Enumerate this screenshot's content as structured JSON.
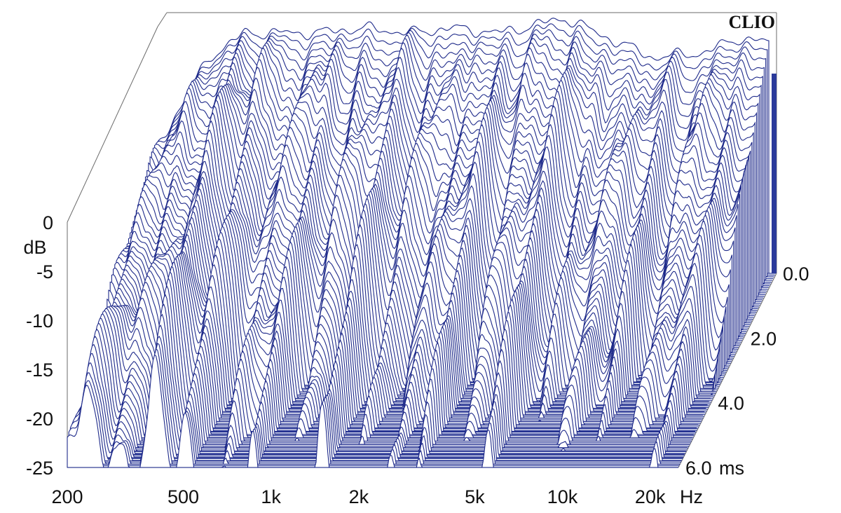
{
  "chart_data": {
    "type": "waterfall",
    "brand": "CLIO",
    "colors": {
      "lines": "#1e2a8a",
      "frame": "#6b6b6b",
      "floor": "#2b3a9a"
    },
    "frequency_axis": {
      "unit": "Hz",
      "scale": "log",
      "range": [
        200,
        25000
      ],
      "ticks": [
        {
          "value": 200,
          "label": "200"
        },
        {
          "value": 500,
          "label": "500"
        },
        {
          "value": 1000,
          "label": "1k"
        },
        {
          "value": 2000,
          "label": "2k"
        },
        {
          "value": 5000,
          "label": "5k"
        },
        {
          "value": 10000,
          "label": "10k"
        },
        {
          "value": 20000,
          "label": "20k"
        }
      ]
    },
    "level_axis": {
      "unit": "dB",
      "range": [
        -25,
        0
      ],
      "ticks": [
        {
          "value": 0,
          "label": "0"
        },
        {
          "value": -5,
          "label": "-5"
        },
        {
          "value": -10,
          "label": "-10"
        },
        {
          "value": -15,
          "label": "-15"
        },
        {
          "value": -20,
          "label": "-20"
        },
        {
          "value": -25,
          "label": "-25"
        }
      ]
    },
    "time_axis": {
      "unit": "ms",
      "range": [
        0,
        6
      ],
      "ticks": [
        {
          "value": 0,
          "label": "0.0"
        },
        {
          "value": 2,
          "label": "2.0"
        },
        {
          "value": 4,
          "label": "4.0"
        },
        {
          "value": 6,
          "label": "6.0"
        }
      ]
    },
    "slices": 60,
    "initial_response_db": [
      {
        "f": 200,
        "db": -12
      },
      {
        "f": 300,
        "db": -3
      },
      {
        "f": 400,
        "db": -0.5
      },
      {
        "f": 500,
        "db": -0.5
      },
      {
        "f": 700,
        "db": -0.5
      },
      {
        "f": 1000,
        "db": 0
      },
      {
        "f": 1500,
        "db": -0.5
      },
      {
        "f": 2000,
        "db": 0
      },
      {
        "f": 3000,
        "db": -0.5
      },
      {
        "f": 5000,
        "db": 1
      },
      {
        "f": 7000,
        "db": -1
      },
      {
        "f": 10000,
        "db": -3
      },
      {
        "f": 15000,
        "db": -2.5
      },
      {
        "f": 20000,
        "db": -1
      },
      {
        "f": 25000,
        "db": -1.5
      }
    ]
  }
}
